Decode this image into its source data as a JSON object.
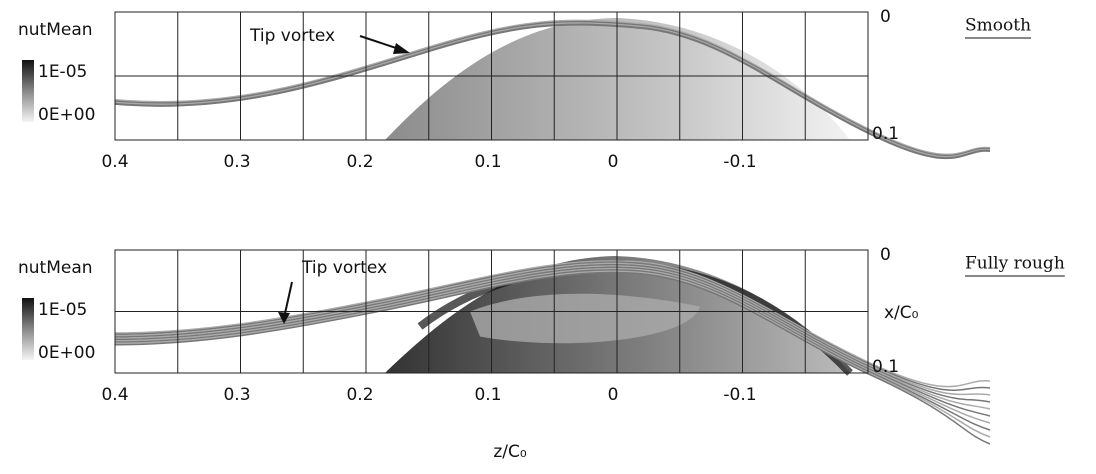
{
  "ylabel": "x/C₀",
  "xlabel": "z/C₀",
  "panels": [
    {
      "label": "Smooth",
      "colorbar": {
        "title": "nutMean",
        "max": "1E-05",
        "min": "0E+00"
      },
      "annotation": "Tip vortex",
      "xticks": [
        "0.4",
        "0.3",
        "0.2",
        "0.1",
        "0",
        "-0.1"
      ],
      "yticks": [
        "0",
        "0.1"
      ]
    },
    {
      "label": "Fully rough",
      "colorbar": {
        "title": "nutMean",
        "max": "1E-05",
        "min": "0E+00"
      },
      "annotation": "Tip vortex",
      "xticks": [
        "0.4",
        "0.3",
        "0.2",
        "0.1",
        "0",
        "-0.1"
      ],
      "yticks": [
        "0",
        "0.1"
      ]
    }
  ]
}
